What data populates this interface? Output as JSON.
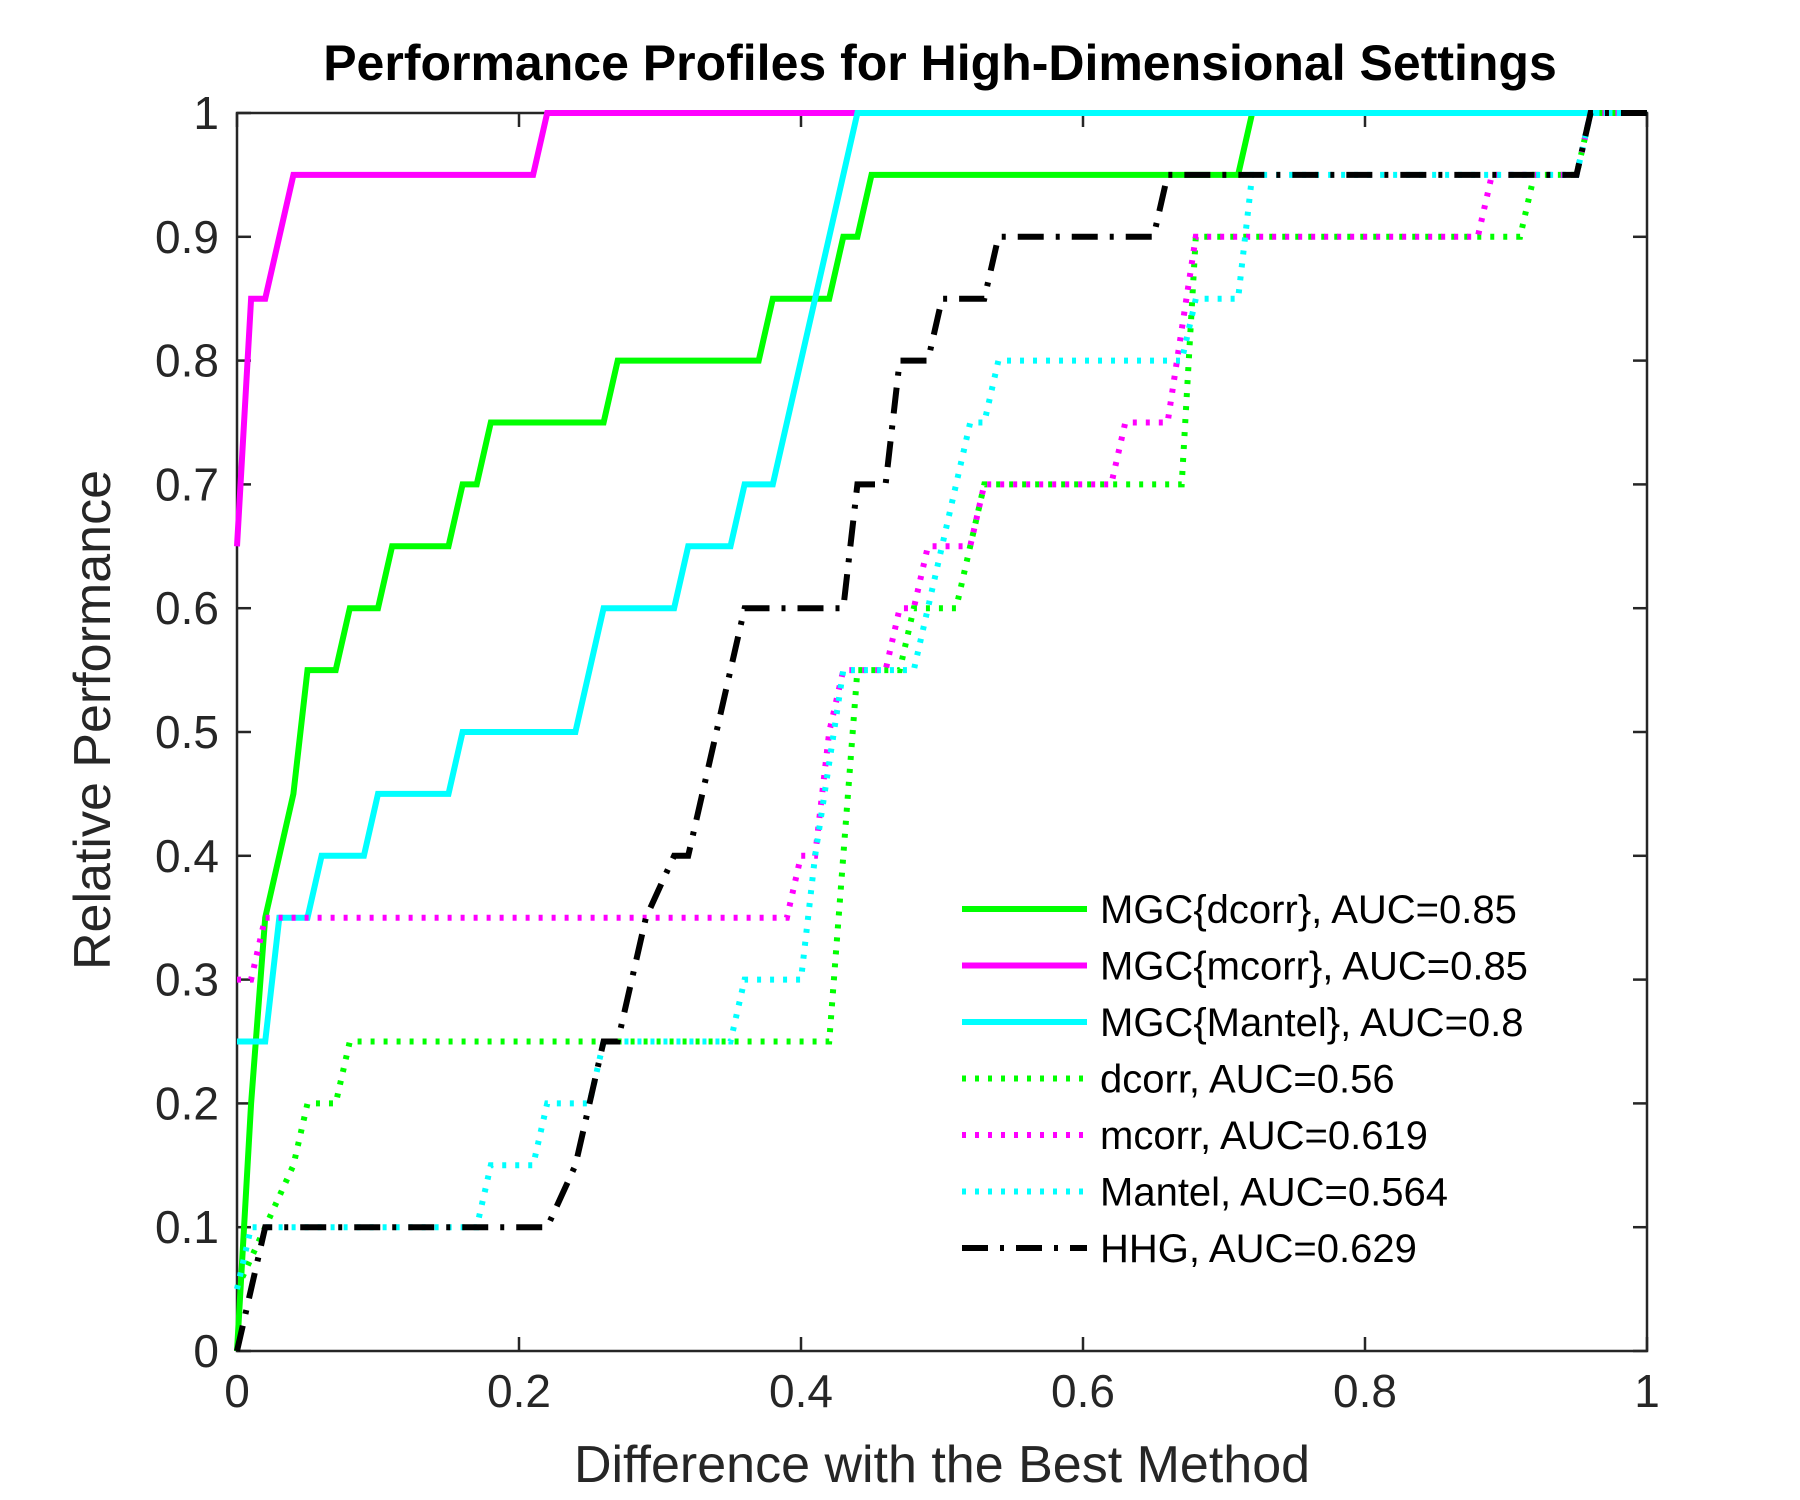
{
  "chart_data": {
    "type": "line",
    "title": "Performance Profiles for High-Dimensional Settings",
    "xlabel": "Difference with the Best Method",
    "ylabel": "Relative Performance",
    "xlim": [
      0,
      1
    ],
    "ylim": [
      0,
      1
    ],
    "x_ticks": [
      "0",
      "0.2",
      "0.4",
      "0.6",
      "0.8",
      "1"
    ],
    "y_ticks": [
      "0",
      "0.1",
      "0.2",
      "0.3",
      "0.4",
      "0.5",
      "0.6",
      "0.7",
      "0.8",
      "0.9",
      "1"
    ],
    "grid": false,
    "legend_position": "bottom-right",
    "series": [
      {
        "name": "MGC{dcorr}, AUC=0.85",
        "color": "#00ff00",
        "style": "solid",
        "points": [
          [
            0,
            0
          ],
          [
            0.01,
            0.2
          ],
          [
            0.02,
            0.35
          ],
          [
            0.04,
            0.45
          ],
          [
            0.05,
            0.55
          ],
          [
            0.07,
            0.55
          ],
          [
            0.08,
            0.6
          ],
          [
            0.1,
            0.6
          ],
          [
            0.11,
            0.65
          ],
          [
            0.15,
            0.65
          ],
          [
            0.16,
            0.7
          ],
          [
            0.17,
            0.7
          ],
          [
            0.18,
            0.75
          ],
          [
            0.26,
            0.75
          ],
          [
            0.27,
            0.8
          ],
          [
            0.37,
            0.8
          ],
          [
            0.38,
            0.85
          ],
          [
            0.42,
            0.85
          ],
          [
            0.43,
            0.9
          ],
          [
            0.44,
            0.9
          ],
          [
            0.45,
            0.95
          ],
          [
            0.71,
            0.95
          ],
          [
            0.72,
            1
          ],
          [
            1,
            1
          ]
        ]
      },
      {
        "name": "MGC{mcorr}, AUC=0.85",
        "color": "#ff00ff",
        "style": "solid",
        "points": [
          [
            0,
            0.65
          ],
          [
            0.01,
            0.85
          ],
          [
            0.02,
            0.85
          ],
          [
            0.04,
            0.95
          ],
          [
            0.21,
            0.95
          ],
          [
            0.22,
            1
          ],
          [
            1,
            1
          ]
        ]
      },
      {
        "name": "MGC{Mantel}, AUC=0.8",
        "color": "#00ffff",
        "style": "solid",
        "points": [
          [
            0,
            0.25
          ],
          [
            0.02,
            0.25
          ],
          [
            0.03,
            0.35
          ],
          [
            0.05,
            0.35
          ],
          [
            0.06,
            0.4
          ],
          [
            0.09,
            0.4
          ],
          [
            0.1,
            0.45
          ],
          [
            0.15,
            0.45
          ],
          [
            0.16,
            0.5
          ],
          [
            0.24,
            0.5
          ],
          [
            0.26,
            0.6
          ],
          [
            0.31,
            0.6
          ],
          [
            0.32,
            0.65
          ],
          [
            0.35,
            0.65
          ],
          [
            0.36,
            0.7
          ],
          [
            0.38,
            0.7
          ],
          [
            0.44,
            1
          ],
          [
            1,
            1
          ]
        ]
      },
      {
        "name": "dcorr, AUC=0.56",
        "color": "#00ff00",
        "style": "dotted",
        "points": [
          [
            0,
            0.05
          ],
          [
            0.02,
            0.1
          ],
          [
            0.04,
            0.15
          ],
          [
            0.05,
            0.2
          ],
          [
            0.07,
            0.2
          ],
          [
            0.08,
            0.25
          ],
          [
            0.42,
            0.25
          ],
          [
            0.43,
            0.4
          ],
          [
            0.44,
            0.55
          ],
          [
            0.47,
            0.55
          ],
          [
            0.48,
            0.6
          ],
          [
            0.51,
            0.6
          ],
          [
            0.52,
            0.65
          ],
          [
            0.53,
            0.7
          ],
          [
            0.67,
            0.7
          ],
          [
            0.68,
            0.9
          ],
          [
            0.91,
            0.9
          ],
          [
            0.92,
            0.95
          ],
          [
            0.95,
            0.95
          ],
          [
            0.96,
            1
          ],
          [
            1,
            1
          ]
        ]
      },
      {
        "name": "mcorr, AUC=0.619",
        "color": "#ff00ff",
        "style": "dotted",
        "points": [
          [
            0,
            0.3
          ],
          [
            0.01,
            0.3
          ],
          [
            0.02,
            0.35
          ],
          [
            0.39,
            0.35
          ],
          [
            0.4,
            0.4
          ],
          [
            0.41,
            0.4
          ],
          [
            0.42,
            0.5
          ],
          [
            0.43,
            0.55
          ],
          [
            0.46,
            0.55
          ],
          [
            0.47,
            0.6
          ],
          [
            0.48,
            0.6
          ],
          [
            0.49,
            0.65
          ],
          [
            0.52,
            0.65
          ],
          [
            0.53,
            0.7
          ],
          [
            0.62,
            0.7
          ],
          [
            0.63,
            0.75
          ],
          [
            0.66,
            0.75
          ],
          [
            0.68,
            0.9
          ],
          [
            0.88,
            0.9
          ],
          [
            0.89,
            0.95
          ],
          [
            0.95,
            0.95
          ],
          [
            0.96,
            1
          ],
          [
            1,
            1
          ]
        ]
      },
      {
        "name": "Mantel, AUC=0.564",
        "color": "#00ffff",
        "style": "dotted",
        "points": [
          [
            0,
            0.05
          ],
          [
            0.01,
            0.1
          ],
          [
            0.17,
            0.1
          ],
          [
            0.18,
            0.15
          ],
          [
            0.21,
            0.15
          ],
          [
            0.22,
            0.2
          ],
          [
            0.25,
            0.2
          ],
          [
            0.26,
            0.25
          ],
          [
            0.35,
            0.25
          ],
          [
            0.36,
            0.3
          ],
          [
            0.4,
            0.3
          ],
          [
            0.41,
            0.4
          ],
          [
            0.43,
            0.55
          ],
          [
            0.48,
            0.55
          ],
          [
            0.49,
            0.6
          ],
          [
            0.5,
            0.65
          ],
          [
            0.51,
            0.7
          ],
          [
            0.52,
            0.75
          ],
          [
            0.53,
            0.75
          ],
          [
            0.54,
            0.8
          ],
          [
            0.67,
            0.8
          ],
          [
            0.68,
            0.85
          ],
          [
            0.71,
            0.85
          ],
          [
            0.72,
            0.95
          ],
          [
            0.95,
            0.95
          ],
          [
            0.96,
            1
          ],
          [
            1,
            1
          ]
        ]
      },
      {
        "name": "HHG, AUC=0.629",
        "color": "#000000",
        "style": "dashdot",
        "points": [
          [
            0,
            0
          ],
          [
            0.02,
            0.1
          ],
          [
            0.22,
            0.1
          ],
          [
            0.24,
            0.15
          ],
          [
            0.26,
            0.25
          ],
          [
            0.27,
            0.25
          ],
          [
            0.29,
            0.35
          ],
          [
            0.31,
            0.4
          ],
          [
            0.32,
            0.4
          ],
          [
            0.36,
            0.6
          ],
          [
            0.43,
            0.6
          ],
          [
            0.44,
            0.7
          ],
          [
            0.46,
            0.7
          ],
          [
            0.47,
            0.8
          ],
          [
            0.49,
            0.8
          ],
          [
            0.5,
            0.85
          ],
          [
            0.53,
            0.85
          ],
          [
            0.54,
            0.9
          ],
          [
            0.65,
            0.9
          ],
          [
            0.66,
            0.95
          ],
          [
            0.95,
            0.95
          ],
          [
            0.96,
            1
          ],
          [
            1,
            1
          ]
        ]
      }
    ]
  }
}
